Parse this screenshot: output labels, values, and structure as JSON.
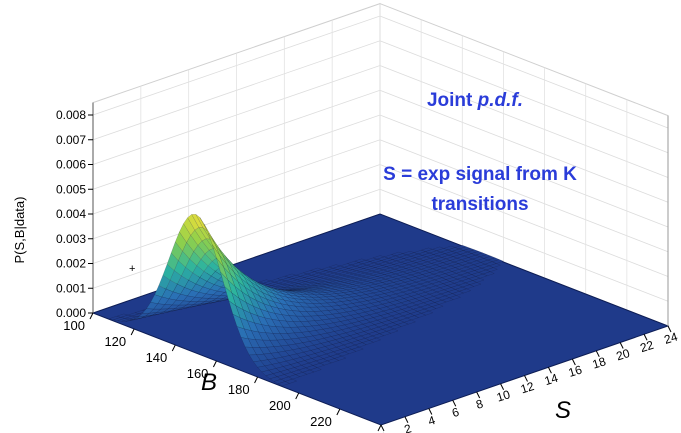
{
  "annotations": {
    "joint_prefix": "Joint ",
    "joint_italic": "p.d.f.",
    "signal_line1": "S = exp signal from K",
    "signal_line2": "transitions"
  },
  "colors": {
    "floor": "#1f3a8a",
    "annotation": "#2a3cd9",
    "palette": [
      "#1f3a8a",
      "#2a6fb5",
      "#2bb3a0",
      "#8fd04a",
      "#f2e03a"
    ]
  },
  "chart_data": {
    "type": "surface",
    "title": "",
    "zlabel": "P(S,B|data)",
    "xlabel": "S",
    "ylabel": "B",
    "zlim": [
      0,
      0.0085
    ],
    "zticks": [
      "0.000",
      "0.001",
      "0.002",
      "0.003",
      "0.004",
      "0.005",
      "0.006",
      "0.007",
      "0.008"
    ],
    "xlim": [
      0,
      24
    ],
    "xticks": [
      "0",
      "2",
      "4",
      "6",
      "8",
      "10",
      "12",
      "14",
      "16",
      "18",
      "20",
      "22",
      "24"
    ],
    "ylim": [
      100,
      240
    ],
    "yticks": [
      "100",
      "120",
      "140",
      "160",
      "180",
      "200",
      "220",
      "240"
    ],
    "grid": true,
    "peak": {
      "S": 0,
      "B": 150,
      "P": 0.0056
    },
    "surface_model": {
      "B_mean": 150,
      "B_sigma": 13,
      "S_decay": 5.0,
      "P_max": 0.0056
    }
  }
}
